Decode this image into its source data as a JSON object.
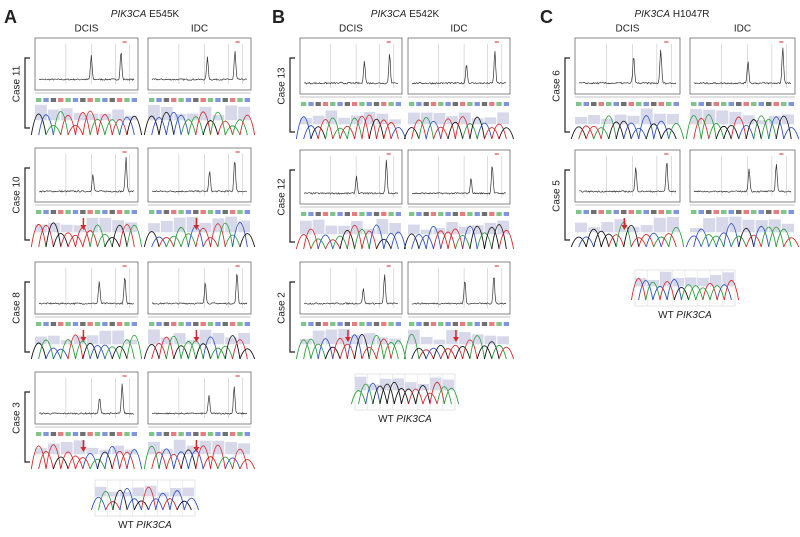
{
  "panels": [
    {
      "label": "A",
      "gene": "PIK3CA",
      "mutation": "E545K",
      "columns": [
        "DCIS",
        "IDC"
      ],
      "cases": [
        "Case 11",
        "Case 10",
        "Case 8",
        "Case 3"
      ],
      "wt_prefix": "WT",
      "wt_gene": "PIK3CA"
    },
    {
      "label": "B",
      "gene": "PIK3CA",
      "mutation": "E542K",
      "columns": [
        "DCIS",
        "IDC"
      ],
      "cases": [
        "Case 13",
        "Case 12",
        "Case 2"
      ],
      "wt_prefix": "WT",
      "wt_gene": "PIK3CA"
    },
    {
      "label": "C",
      "gene": "PIK3CA",
      "mutation": "H1047R",
      "columns": [
        "DCIS",
        "IDC"
      ],
      "cases": [
        "Case 6",
        "Case 5"
      ],
      "wt_prefix": "WT",
      "wt_gene": "PIK3CA"
    }
  ]
}
